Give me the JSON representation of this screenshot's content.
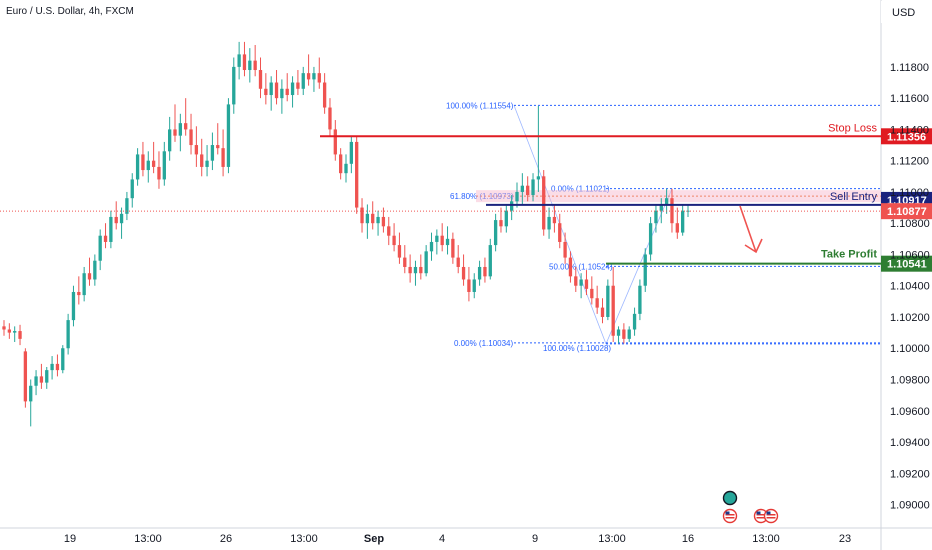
{
  "title": "Euro / U.S. Dollar, 4h, FXCM",
  "currency": "USD",
  "colors": {
    "up": "#26a69a",
    "down": "#ef5350",
    "stop": "#e01b22",
    "entry": "#1a237e",
    "profit": "#2e7d32",
    "fib": "#2962ff",
    "fib_618": "#e65100",
    "current": "#ef5350"
  },
  "chart_data": {
    "type": "candlestick",
    "ylim": [
      1.0885,
      1.121
    ],
    "y_ticks": [
      "1.11800",
      "1.11600",
      "1.11400",
      "1.11200",
      "1.11000",
      "1.10800",
      "1.10600",
      "1.10400",
      "1.10200",
      "1.10000",
      "1.09800",
      "1.09600",
      "1.09400",
      "1.09200",
      "1.09000"
    ],
    "x_ticks": [
      "19",
      "13:00",
      "26",
      "13:00",
      "Sep",
      "4",
      "9",
      "13:00",
      "16",
      "13:00",
      "23"
    ],
    "candles": [
      [
        1.1014,
        1.1018,
        1.1008,
        1.1012
      ],
      [
        1.1012,
        1.1016,
        1.1006,
        1.101
      ],
      [
        1.101,
        1.1014,
        1.1004,
        1.1011
      ],
      [
        1.1011,
        1.1015,
        1.1002,
        1.1006
      ],
      [
        1.0998,
        1.1,
        1.0962,
        1.0966
      ],
      [
        1.0966,
        1.098,
        1.095,
        1.0976
      ],
      [
        1.0976,
        1.0986,
        1.097,
        1.0982
      ],
      [
        1.0982,
        1.099,
        1.0974,
        1.0978
      ],
      [
        1.0978,
        1.0988,
        1.0974,
        1.0986
      ],
      [
        1.0986,
        1.0995,
        1.098,
        1.099
      ],
      [
        1.099,
        1.0996,
        1.0982,
        1.0986
      ],
      [
        1.0986,
        1.1002,
        1.0984,
        1.1
      ],
      [
        1.1,
        1.1022,
        1.0996,
        1.1018
      ],
      [
        1.1018,
        1.104,
        1.1014,
        1.1036
      ],
      [
        1.1036,
        1.1046,
        1.1028,
        1.1034
      ],
      [
        1.1034,
        1.1052,
        1.103,
        1.1048
      ],
      [
        1.1048,
        1.1058,
        1.104,
        1.1044
      ],
      [
        1.1044,
        1.106,
        1.104,
        1.1056
      ],
      [
        1.1056,
        1.1076,
        1.105,
        1.1072
      ],
      [
        1.1072,
        1.108,
        1.1064,
        1.1068
      ],
      [
        1.1068,
        1.1088,
        1.1064,
        1.1084
      ],
      [
        1.1084,
        1.1094,
        1.1076,
        1.108
      ],
      [
        1.108,
        1.109,
        1.107,
        1.1086
      ],
      [
        1.1086,
        1.11,
        1.1082,
        1.1096
      ],
      [
        1.1096,
        1.1112,
        1.109,
        1.1108
      ],
      [
        1.1108,
        1.1128,
        1.1104,
        1.1124
      ],
      [
        1.1124,
        1.1132,
        1.111,
        1.1114
      ],
      [
        1.1114,
        1.1126,
        1.1106,
        1.112
      ],
      [
        1.112,
        1.1132,
        1.1112,
        1.1116
      ],
      [
        1.1116,
        1.1126,
        1.1102,
        1.1108
      ],
      [
        1.1108,
        1.1132,
        1.1104,
        1.1126
      ],
      [
        1.1126,
        1.1148,
        1.112,
        1.114
      ],
      [
        1.114,
        1.1156,
        1.1132,
        1.1136
      ],
      [
        1.1136,
        1.115,
        1.1126,
        1.1144
      ],
      [
        1.1144,
        1.116,
        1.1136,
        1.114
      ],
      [
        1.114,
        1.115,
        1.1124,
        1.113
      ],
      [
        1.113,
        1.1142,
        1.1116,
        1.1124
      ],
      [
        1.1124,
        1.1134,
        1.111,
        1.1116
      ],
      [
        1.1116,
        1.113,
        1.111,
        1.112
      ],
      [
        1.112,
        1.1138,
        1.1114,
        1.113
      ],
      [
        1.113,
        1.1144,
        1.1124,
        1.1128
      ],
      [
        1.1128,
        1.114,
        1.111,
        1.1116
      ],
      [
        1.1116,
        1.116,
        1.1112,
        1.1156
      ],
      [
        1.1156,
        1.1186,
        1.115,
        1.118
      ],
      [
        1.118,
        1.1196,
        1.1172,
        1.1188
      ],
      [
        1.1188,
        1.1196,
        1.1174,
        1.1178
      ],
      [
        1.1178,
        1.1192,
        1.117,
        1.1184
      ],
      [
        1.1184,
        1.1194,
        1.1174,
        1.1178
      ],
      [
        1.1178,
        1.1186,
        1.116,
        1.1166
      ],
      [
        1.1166,
        1.1176,
        1.1156,
        1.1162
      ],
      [
        1.1162,
        1.1174,
        1.1152,
        1.117
      ],
      [
        1.117,
        1.1178,
        1.1156,
        1.116
      ],
      [
        1.116,
        1.1172,
        1.115,
        1.1166
      ],
      [
        1.1166,
        1.1176,
        1.1158,
        1.1162
      ],
      [
        1.1162,
        1.1174,
        1.1154,
        1.117
      ],
      [
        1.117,
        1.1178,
        1.1162,
        1.1166
      ],
      [
        1.1166,
        1.118,
        1.1162,
        1.1176
      ],
      [
        1.1176,
        1.1188,
        1.1168,
        1.1172
      ],
      [
        1.1172,
        1.118,
        1.1164,
        1.1176
      ],
      [
        1.1176,
        1.1186,
        1.1166,
        1.117
      ],
      [
        1.117,
        1.1176,
        1.115,
        1.1154
      ],
      [
        1.1154,
        1.116,
        1.1136,
        1.114
      ],
      [
        1.114,
        1.1146,
        1.112,
        1.1124
      ],
      [
        1.1124,
        1.1128,
        1.1108,
        1.1112
      ],
      [
        1.1112,
        1.1124,
        1.1106,
        1.1118
      ],
      [
        1.1118,
        1.1136,
        1.1112,
        1.1132
      ],
      [
        1.1132,
        1.1136,
        1.1086,
        1.109
      ],
      [
        1.109,
        1.1096,
        1.1074,
        1.108
      ],
      [
        1.108,
        1.1092,
        1.107,
        1.1086
      ],
      [
        1.1086,
        1.1094,
        1.1076,
        1.108
      ],
      [
        1.108,
        1.1088,
        1.1072,
        1.1084
      ],
      [
        1.1084,
        1.109,
        1.1074,
        1.1078
      ],
      [
        1.1078,
        1.1084,
        1.1066,
        1.1072
      ],
      [
        1.1072,
        1.108,
        1.1062,
        1.1066
      ],
      [
        1.1066,
        1.1074,
        1.1054,
        1.1058
      ],
      [
        1.1058,
        1.1066,
        1.1048,
        1.1052
      ],
      [
        1.1052,
        1.106,
        1.1042,
        1.1048
      ],
      [
        1.1048,
        1.1056,
        1.104,
        1.1052
      ],
      [
        1.1052,
        1.106,
        1.1044,
        1.1048
      ],
      [
        1.1048,
        1.1066,
        1.1046,
        1.1062
      ],
      [
        1.1062,
        1.1074,
        1.1056,
        1.1068
      ],
      [
        1.1068,
        1.1076,
        1.106,
        1.1072
      ],
      [
        1.1072,
        1.108,
        1.1062,
        1.1066
      ],
      [
        1.1066,
        1.1078,
        1.106,
        1.107
      ],
      [
        1.107,
        1.1074,
        1.1054,
        1.1058
      ],
      [
        1.1058,
        1.1066,
        1.1048,
        1.1052
      ],
      [
        1.1052,
        1.106,
        1.104,
        1.1044
      ],
      [
        1.1044,
        1.1052,
        1.103,
        1.1036
      ],
      [
        1.1036,
        1.1048,
        1.1032,
        1.1044
      ],
      [
        1.1044,
        1.1056,
        1.104,
        1.1052
      ],
      [
        1.1052,
        1.1058,
        1.1042,
        1.1046
      ],
      [
        1.1046,
        1.107,
        1.1044,
        1.1066
      ],
      [
        1.1066,
        1.1086,
        1.1062,
        1.1082
      ],
      [
        1.1082,
        1.109,
        1.1074,
        1.1078
      ],
      [
        1.1078,
        1.1092,
        1.1074,
        1.1088
      ],
      [
        1.1088,
        1.1098,
        1.1082,
        1.1094
      ],
      [
        1.1094,
        1.1106,
        1.109,
        1.11
      ],
      [
        1.11,
        1.1112,
        1.1092,
        1.1104
      ],
      [
        1.1104,
        1.111,
        1.1094,
        1.1098
      ],
      [
        1.1098,
        1.1112,
        1.1094,
        1.1108
      ],
      [
        1.1108,
        1.1155,
        1.11,
        1.111
      ],
      [
        1.111,
        1.1114,
        1.1072,
        1.1076
      ],
      [
        1.1076,
        1.109,
        1.107,
        1.1084
      ],
      [
        1.1084,
        1.1092,
        1.1074,
        1.108
      ],
      [
        1.108,
        1.1086,
        1.1064,
        1.1068
      ],
      [
        1.1068,
        1.1074,
        1.1054,
        1.1058
      ],
      [
        1.1058,
        1.1062,
        1.1042,
        1.1046
      ],
      [
        1.1046,
        1.1052,
        1.1036,
        1.104
      ],
      [
        1.104,
        1.1048,
        1.1032,
        1.1044
      ],
      [
        1.1044,
        1.105,
        1.1034,
        1.1038
      ],
      [
        1.1038,
        1.1046,
        1.1028,
        1.1032
      ],
      [
        1.1032,
        1.104,
        1.1022,
        1.1026
      ],
      [
        1.1026,
        1.1032,
        1.1016,
        1.102
      ],
      [
        1.102,
        1.1044,
        1.1018,
        1.104
      ],
      [
        1.104,
        1.1052,
        1.1004,
        1.1008
      ],
      [
        1.1008,
        1.1014,
        1.1003,
        1.1012
      ],
      [
        1.1012,
        1.1016,
        1.1003,
        1.1006
      ],
      [
        1.1006,
        1.1014,
        1.1004,
        1.1012
      ],
      [
        1.1012,
        1.1026,
        1.1008,
        1.1022
      ],
      [
        1.1022,
        1.1044,
        1.1018,
        1.104
      ],
      [
        1.104,
        1.1064,
        1.1036,
        1.106
      ],
      [
        1.106,
        1.1084,
        1.1056,
        1.108
      ],
      [
        1.108,
        1.1092,
        1.1074,
        1.1088
      ],
      [
        1.1088,
        1.1096,
        1.108,
        1.1092
      ],
      [
        1.1092,
        1.1102,
        1.1086,
        1.1096
      ],
      [
        1.1096,
        1.1102,
        1.1074,
        1.108
      ],
      [
        1.108,
        1.109,
        1.107,
        1.1074
      ],
      [
        1.1074,
        1.1092,
        1.1072,
        1.1088
      ],
      [
        1.1088,
        1.1092,
        1.1084,
        1.1088
      ]
    ],
    "levels": {
      "stop_loss": 1.11356,
      "sell_entry": 1.10917,
      "take_profit": 1.10541,
      "current_price": 1.10877
    },
    "fibonacci": [
      {
        "label": "100.00% (1.11554)",
        "price": 1.11554
      },
      {
        "label": "61.80% (1.10973)",
        "price": 1.10973
      },
      {
        "label": "0.00% (1.11021)",
        "price": 1.11021
      },
      {
        "label": "50.00% (1.10524)",
        "price": 1.10524
      },
      {
        "label": "0.00% (1.10034)",
        "price": 1.10034
      },
      {
        "label": "100.00% (1.10028)",
        "price": 1.10028
      }
    ],
    "annotations": {
      "stop_loss_label": "Stop Loss",
      "sell_entry_label": "Sell Entry",
      "take_profit_label": "Take Profit",
      "stop_loss_tag": "1.11356",
      "sell_entry_tag": "1.10917",
      "take_profit_tag": "1.10541",
      "current_tag": "1.10877"
    },
    "events": [
      "calendar-event-icon",
      "us-flag-icon",
      "us-flag-icon",
      "us-flag-icon"
    ]
  }
}
